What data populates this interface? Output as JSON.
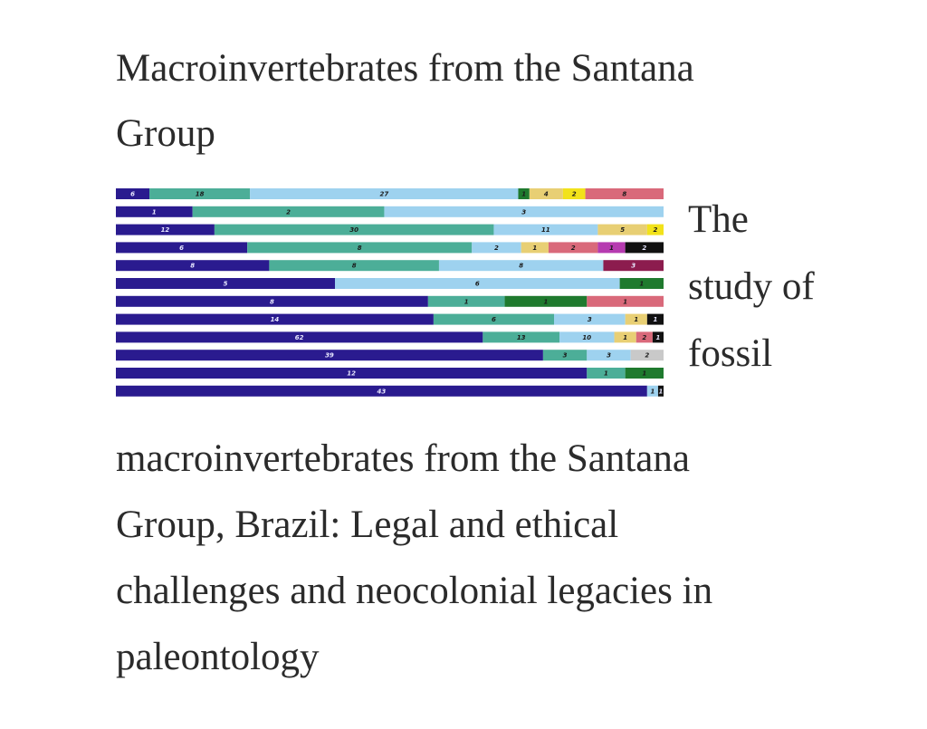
{
  "article": {
    "title_line1": "Macroinvertebrates from the Santana",
    "title_line2": "Group",
    "side_line1": "The",
    "side_line2": "study of",
    "side_line3": "fossil",
    "body_line1": "macroinvertebrates from the Santana",
    "body_line2": "Group, Brazil: Legal and ethical",
    "body_line3": "challenges and neocolonial legacies in",
    "body_line4": "paleontology"
  },
  "chart_data": {
    "type": "bar",
    "stacked": true,
    "orientation": "horizontal",
    "normalized": true,
    "palette": [
      "#2a1b8f",
      "#4cae98",
      "#9ed2ef",
      "#1f7a2e",
      "#e8cf74",
      "#f2e21a",
      "#d9697a",
      "#b63bb0",
      "#111111",
      "#8c1c4e",
      "#c9c9c9"
    ],
    "rows": [
      [
        {
          "v": 6,
          "c": 0,
          "t": "6"
        },
        {
          "v": 18,
          "c": 1,
          "t": "18"
        },
        {
          "v": 48,
          "c": 2,
          "t": "27"
        },
        {
          "v": 2,
          "c": 3,
          "t": "1"
        },
        {
          "v": 6,
          "c": 4,
          "t": "4"
        },
        {
          "v": 4,
          "c": 5,
          "t": "2"
        },
        {
          "v": 14,
          "c": 6,
          "t": "8"
        }
      ],
      [
        {
          "v": 14,
          "c": 0,
          "t": "1"
        },
        {
          "v": 35,
          "c": 1,
          "t": "2"
        },
        {
          "v": 51,
          "c": 2,
          "t": "3"
        }
      ],
      [
        {
          "v": 18,
          "c": 0,
          "t": "12"
        },
        {
          "v": 51,
          "c": 1,
          "t": "30"
        },
        {
          "v": 19,
          "c": 2,
          "t": "11"
        },
        {
          "v": 9,
          "c": 4,
          "t": "5"
        },
        {
          "v": 3,
          "c": 5,
          "t": "2"
        }
      ],
      [
        {
          "v": 24,
          "c": 0,
          "t": "6"
        },
        {
          "v": 41,
          "c": 1,
          "t": "8"
        },
        {
          "v": 9,
          "c": 2,
          "t": "2"
        },
        {
          "v": 5,
          "c": 4,
          "t": "1"
        },
        {
          "v": 9,
          "c": 6,
          "t": "2"
        },
        {
          "v": 5,
          "c": 7,
          "t": "1"
        },
        {
          "v": 7,
          "c": 8,
          "t": "2"
        }
      ],
      [
        {
          "v": 28,
          "c": 0,
          "t": "8"
        },
        {
          "v": 31,
          "c": 1,
          "t": "8"
        },
        {
          "v": 30,
          "c": 2,
          "t": "8"
        },
        {
          "v": 11,
          "c": 9,
          "t": "3"
        }
      ],
      [
        {
          "v": 40,
          "c": 0,
          "t": "5"
        },
        {
          "v": 52,
          "c": 2,
          "t": "6"
        },
        {
          "v": 8,
          "c": 3,
          "t": "1"
        }
      ],
      [
        {
          "v": 57,
          "c": 0,
          "t": "8"
        },
        {
          "v": 14,
          "c": 1,
          "t": "1"
        },
        {
          "v": 15,
          "c": 3,
          "t": "1"
        },
        {
          "v": 14,
          "c": 6,
          "t": "1"
        }
      ],
      [
        {
          "v": 58,
          "c": 0,
          "t": "14"
        },
        {
          "v": 22,
          "c": 1,
          "t": "6"
        },
        {
          "v": 13,
          "c": 2,
          "t": "3"
        },
        {
          "v": 4,
          "c": 4,
          "t": "1"
        },
        {
          "v": 3,
          "c": 8,
          "t": "1"
        }
      ],
      [
        {
          "v": 67,
          "c": 0,
          "t": "62"
        },
        {
          "v": 14,
          "c": 1,
          "t": "13"
        },
        {
          "v": 10,
          "c": 2,
          "t": "10"
        },
        {
          "v": 4,
          "c": 4,
          "t": "1"
        },
        {
          "v": 3,
          "c": 6,
          "t": "2"
        },
        {
          "v": 2,
          "c": 8,
          "t": "1"
        }
      ],
      [
        {
          "v": 78,
          "c": 0,
          "t": "39"
        },
        {
          "v": 8,
          "c": 1,
          "t": "3"
        },
        {
          "v": 8,
          "c": 2,
          "t": "3"
        },
        {
          "v": 6,
          "c": 10,
          "t": "2"
        }
      ],
      [
        {
          "v": 86,
          "c": 0,
          "t": "12"
        },
        {
          "v": 7,
          "c": 1,
          "t": "1"
        },
        {
          "v": 7,
          "c": 3,
          "t": "1"
        }
      ],
      [
        {
          "v": 97,
          "c": 0,
          "t": "43"
        },
        {
          "v": 2,
          "c": 2,
          "t": "1"
        },
        {
          "v": 1,
          "c": 8,
          "t": "1"
        }
      ]
    ]
  }
}
